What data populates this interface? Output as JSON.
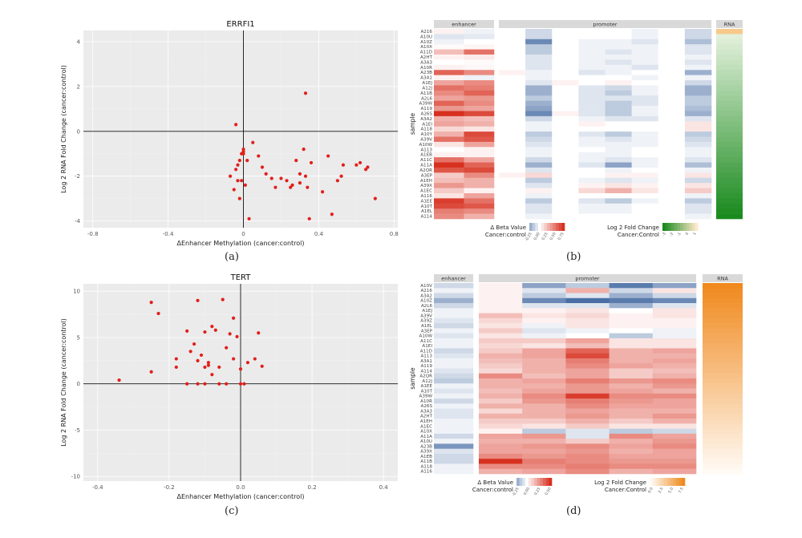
{
  "panel_labels": [
    "(a)",
    "(b)",
    "(c)",
    "(d)"
  ],
  "chart_data": [
    {
      "id": "a",
      "type": "scatter",
      "title": "ERRFI1",
      "xlabel": "ΔEnhancer Methylation (cancer:control)",
      "ylabel": "Log 2 RNA Fold Change (cancer:control)",
      "xlim": [
        -0.85,
        0.82
      ],
      "ylim": [
        -4.3,
        4.5
      ],
      "xticks": [
        -0.8,
        -0.4,
        0,
        0.4,
        0.8
      ],
      "xtick_labels": [
        "-0.8",
        "-0.4",
        "0",
        "0.4",
        "0.8"
      ],
      "yticks": [
        -4,
        -2,
        0,
        2,
        4
      ],
      "ytick_labels": [
        "-4",
        "-2",
        "0",
        "2",
        "4"
      ],
      "point_color": "#e0201b",
      "x": [
        -0.07,
        -0.05,
        -0.04,
        -0.03,
        -0.02,
        -0.01,
        -0.01,
        0.0,
        0.0,
        0.0,
        0.01,
        0.02,
        0.03,
        0.05,
        -0.02,
        -0.04,
        -0.03,
        0.08,
        0.1,
        0.12,
        0.15,
        0.17,
        0.2,
        0.23,
        0.25,
        0.28,
        0.3,
        0.3,
        0.32,
        0.33,
        0.34,
        0.35,
        0.36,
        0.42,
        0.45,
        0.47,
        0.5,
        0.52,
        0.53,
        0.6,
        0.62,
        0.65,
        0.66,
        0.7,
        0.33,
        0.26
      ],
      "y": [
        -2.0,
        -2.6,
        -1.7,
        -2.2,
        -3.0,
        -1.0,
        -2.2,
        -0.8,
        -0.9,
        -1.0,
        -2.4,
        -1.3,
        -3.9,
        -0.5,
        -1.3,
        0.3,
        -1.5,
        -1.1,
        -1.6,
        -1.9,
        -2.1,
        -2.5,
        -2.1,
        -2.2,
        -2.5,
        -1.3,
        -2.3,
        -1.9,
        -0.8,
        -2.0,
        -2.5,
        -3.9,
        -1.4,
        -2.7,
        -1.1,
        -3.7,
        -2.2,
        -2.0,
        -1.5,
        -1.5,
        -1.4,
        -1.7,
        -1.6,
        -3.0,
        1.7,
        -2.4
      ]
    },
    {
      "id": "c",
      "type": "scatter",
      "title": "TERT",
      "xlabel": "ΔEnhancer Methylation (cancer:control)",
      "ylabel": "Log 2 RNA Fold Change (cancer:control)",
      "xlim": [
        -0.44,
        0.44
      ],
      "ylim": [
        -10.5,
        10.8
      ],
      "xticks": [
        -0.4,
        -0.2,
        0,
        0.2,
        0.4
      ],
      "xtick_labels": [
        "-0.4",
        "-0.2",
        "0.0",
        "0.2",
        "0.4"
      ],
      "yticks": [
        -10,
        -5,
        0,
        5,
        10
      ],
      "ytick_labels": [
        "-10",
        "-5",
        "0",
        "5",
        "10"
      ],
      "point_color": "#e0201b",
      "x": [
        -0.34,
        -0.25,
        -0.23,
        -0.25,
        -0.18,
        -0.18,
        -0.15,
        -0.14,
        -0.13,
        -0.12,
        -0.12,
        -0.11,
        -0.1,
        -0.1,
        -0.09,
        -0.09,
        -0.08,
        -0.08,
        -0.07,
        -0.06,
        -0.05,
        -0.04,
        -0.03,
        -0.02,
        -0.02,
        -0.01,
        0.0,
        0.0,
        0.01,
        0.02,
        0.04,
        0.05,
        0.06,
        -0.15,
        -0.12,
        -0.1,
        -0.06,
        -0.04
      ],
      "y": [
        0.4,
        8.8,
        7.6,
        1.3,
        2.7,
        1.8,
        5.7,
        3.5,
        4.3,
        2.5,
        9.0,
        3.1,
        5.6,
        1.8,
        2.0,
        2.3,
        6.2,
        1.0,
        5.8,
        1.8,
        9.1,
        3.9,
        5.4,
        2.7,
        7.1,
        5.1,
        0.0,
        1.6,
        0.0,
        2.3,
        2.7,
        5.5,
        1.9,
        0.0,
        0.0,
        0.0,
        0.0,
        0.0
      ]
    },
    {
      "id": "b",
      "type": "heatmap",
      "section_labels": {
        "enhancer": "enhancer",
        "promoter": "promoter",
        "rna": "RNA"
      },
      "ylabel": "sample",
      "samples": [
        "A216",
        "A10U",
        "A10Z",
        "A10X",
        "A11D",
        "A2HT",
        "A3A3",
        "A10R",
        "A23B",
        "A3A1",
        "A1EJ",
        "A12J",
        "A11B",
        "A2L6",
        "A39W",
        "A119",
        "A26S",
        "A3A2",
        "A1EI",
        "A118",
        "A10Y",
        "A39V",
        "A10W",
        "A113",
        "A1EB",
        "A11C",
        "A11A",
        "A2QR",
        "A3EP",
        "A1EH",
        "A39X",
        "A1EC",
        "A116",
        "A1EE",
        "A10T",
        "A1EL",
        "A114"
      ],
      "enhancer": [
        [
          0.05,
          -0.05
        ],
        [
          -0.1,
          -0.08
        ],
        [
          -0.05,
          0.0
        ],
        [
          0.02,
          0.04
        ],
        [
          0.25,
          0.55
        ],
        [
          0.05,
          0.08
        ],
        [
          0.0,
          0.02
        ],
        [
          0.05,
          0.03
        ],
        [
          0.6,
          0.45
        ],
        [
          0.05,
          -0.05
        ],
        [
          0.35,
          0.45
        ],
        [
          0.55,
          0.5
        ],
        [
          0.45,
          0.6
        ],
        [
          0.35,
          0.4
        ],
        [
          0.6,
          0.45
        ],
        [
          0.4,
          0.35
        ],
        [
          0.8,
          0.7
        ],
        [
          0.3,
          0.25
        ],
        [
          0.35,
          0.3
        ],
        [
          0.15,
          0.1
        ],
        [
          0.3,
          0.7
        ],
        [
          0.55,
          0.65
        ],
        [
          0.1,
          0.35
        ],
        [
          0.0,
          0.05
        ],
        [
          0.05,
          0.05
        ],
        [
          0.55,
          0.35
        ],
        [
          0.85,
          0.6
        ],
        [
          0.65,
          0.7
        ],
        [
          0.2,
          0.45
        ],
        [
          0.25,
          0.3
        ],
        [
          0.4,
          0.3
        ],
        [
          0.2,
          0.05
        ],
        [
          0.1,
          0.35
        ],
        [
          0.75,
          0.55
        ],
        [
          0.7,
          0.65
        ],
        [
          0.5,
          0.45
        ],
        [
          0.45,
          0.3
        ]
      ],
      "promoter": [
        [
          0,
          -0.15,
          0,
          0,
          0,
          -0.05,
          0,
          -0.15
        ],
        [
          0,
          -0.15,
          0,
          0,
          0,
          -0.05,
          0,
          -0.15
        ],
        [
          0,
          -0.45,
          0,
          -0.05,
          -0.05,
          -0.1,
          0,
          -0.25
        ],
        [
          0,
          -0.2,
          0,
          -0.05,
          -0.05,
          -0.05,
          0,
          -0.1
        ],
        [
          0,
          -0.2,
          0,
          -0.05,
          -0.1,
          -0.05,
          0,
          -0.1
        ],
        [
          0,
          -0.1,
          0,
          -0.05,
          -0.05,
          -0.05,
          0,
          -0.05
        ],
        [
          0,
          -0.1,
          0,
          -0.05,
          -0.1,
          -0.05,
          0,
          -0.1
        ],
        [
          0,
          -0.1,
          0,
          -0.05,
          -0.05,
          -0.1,
          0,
          -0.05
        ],
        [
          0.05,
          -0.05,
          0,
          -0.1,
          -0.05,
          0,
          0,
          -0.3
        ],
        [
          0,
          -0.05,
          0,
          0,
          0,
          -0.05,
          0,
          -0.05
        ],
        [
          0,
          -0.1,
          0.05,
          0,
          0.05,
          0,
          0,
          -0.15
        ],
        [
          0,
          -0.3,
          0,
          -0.1,
          -0.15,
          -0.05,
          0,
          -0.3
        ],
        [
          0,
          -0.3,
          0,
          -0.1,
          -0.2,
          -0.05,
          0,
          -0.3
        ],
        [
          0,
          -0.2,
          0,
          -0.1,
          -0.1,
          -0.1,
          0,
          -0.2
        ],
        [
          0,
          -0.3,
          0,
          -0.1,
          -0.2,
          -0.1,
          0,
          -0.2
        ],
        [
          0,
          -0.35,
          0,
          -0.1,
          -0.2,
          -0.05,
          0,
          -0.25
        ],
        [
          0,
          -0.45,
          0.05,
          -0.1,
          -0.2,
          -0.05,
          0,
          -0.3
        ],
        [
          0,
          -0.15,
          0,
          -0.05,
          -0.1,
          -0.1,
          0,
          -0.1
        ],
        [
          0,
          -0.05,
          0,
          0.05,
          0,
          0,
          0,
          0.1
        ],
        [
          0,
          -0.05,
          0,
          0,
          0,
          0,
          0,
          0.1
        ],
        [
          0,
          -0.2,
          0,
          -0.1,
          -0.2,
          -0.05,
          0,
          -0.2
        ],
        [
          0,
          -0.15,
          0,
          -0.05,
          -0.1,
          -0.05,
          0,
          -0.15
        ],
        [
          0,
          -0.1,
          0,
          -0.05,
          -0.05,
          -0.05,
          0,
          -0.1
        ],
        [
          0,
          -0.05,
          0,
          0,
          -0.05,
          0,
          0,
          -0.05
        ],
        [
          0,
          -0.05,
          0,
          -0.05,
          -0.05,
          0,
          0,
          -0.05
        ],
        [
          0,
          -0.15,
          0,
          -0.05,
          -0.1,
          -0.05,
          0,
          -0.1
        ],
        [
          0,
          -0.3,
          0,
          -0.1,
          -0.35,
          -0.05,
          0,
          -0.25
        ],
        [
          0,
          -0.1,
          0,
          0,
          -0.05,
          0,
          0,
          -0.05
        ],
        [
          0.05,
          0.15,
          0,
          0,
          0.05,
          0.05,
          0,
          0.1
        ],
        [
          0,
          -0.2,
          0,
          -0.05,
          -0.1,
          -0.05,
          0,
          -0.15
        ],
        [
          0,
          -0.1,
          0,
          0.05,
          0.1,
          0.05,
          0,
          0.1
        ],
        [
          0,
          0.05,
          0,
          0.15,
          0.3,
          0.1,
          0,
          0.2
        ],
        [
          0,
          -0.05,
          0,
          0,
          0,
          0,
          0,
          -0.05
        ],
        [
          0,
          -0.2,
          0,
          -0.1,
          -0.2,
          -0.05,
          0,
          -0.2
        ],
        [
          0,
          -0.1,
          0,
          -0.05,
          -0.05,
          0,
          0,
          -0.1
        ],
        [
          0,
          -0.1,
          0,
          -0.05,
          -0.05,
          0,
          0,
          -0.1
        ],
        [
          0,
          -0.05,
          0,
          0,
          0,
          0,
          0,
          -0.05
        ]
      ],
      "rna_first_color": "#f7c98b",
      "rna_scale": {
        "from": "#e8f3e0",
        "to": "#1a8a1e"
      },
      "legend1_title": [
        "Δ Beta Value",
        "Cancer:control"
      ],
      "legend1_ticks": [
        "-0.25",
        "0.00",
        "0.25",
        "0.50",
        "0.75"
      ],
      "legend2_title": [
        "Log 2 Fold Change",
        "Cancer:Control"
      ],
      "legend2_ticks": [
        "-3",
        "-2",
        "-1",
        "0",
        "1"
      ]
    },
    {
      "id": "d",
      "type": "heatmap",
      "section_labels": {
        "enhancer": "enhancer",
        "promoter": "promoter",
        "rna": "RNA"
      },
      "ylabel": "sample",
      "samples": [
        "A10V",
        "A216",
        "A3A2",
        "A10Z",
        "A2L6",
        "A1EJ",
        "A39V",
        "A39Z",
        "A1EL",
        "A3EP",
        "A10W",
        "A11C",
        "A1EI",
        "A11D",
        "A113",
        "A3A1",
        "A119",
        "A114",
        "A2QR",
        "A12J",
        "A1EE",
        "A10T",
        "A39W",
        "A10R",
        "A26S",
        "A3A3",
        "A2HT",
        "A1EH",
        "A1EC",
        "A10X",
        "A11A",
        "A10U",
        "A23B",
        "A39X",
        "A1EB",
        "A11B",
        "A118",
        "A116"
      ],
      "enhancer": [
        [
          -0.15
        ],
        [
          -0.05
        ],
        [
          -0.15
        ],
        [
          -0.3
        ],
        [
          -0.15
        ],
        [
          -0.05
        ],
        [
          -0.05
        ],
        [
          -0.1
        ],
        [
          -0.15
        ],
        [
          -0.05
        ],
        [
          -0.1
        ],
        [
          -0.05
        ],
        [
          -0.05
        ],
        [
          -0.15
        ],
        [
          -0.1
        ],
        [
          -0.05
        ],
        [
          -0.05
        ],
        [
          -0.1
        ],
        [
          -0.15
        ],
        [
          -0.2
        ],
        [
          -0.05
        ],
        [
          -0.1
        ],
        [
          -0.05
        ],
        [
          -0.15
        ],
        [
          -0.05
        ],
        [
          -0.1
        ],
        [
          -0.1
        ],
        [
          -0.05
        ],
        [
          -0.05
        ],
        [
          -0.05
        ],
        [
          -0.15
        ],
        [
          -0.05
        ],
        [
          -0.4
        ],
        [
          -0.1
        ],
        [
          -0.15
        ],
        [
          -0.15
        ],
        [
          -0.05
        ],
        [
          -0.05
        ]
      ],
      "promoter": [
        [
          0.05,
          -0.35,
          -0.2,
          -0.5,
          -0.35
        ],
        [
          0.05,
          -0.1,
          0.3,
          -0.15,
          0.1
        ],
        [
          0.05,
          -0.2,
          -0.1,
          -0.3,
          -0.15
        ],
        [
          0.05,
          -0.45,
          -0.55,
          -0.5,
          -0.45
        ],
        [
          0.05,
          -0.1,
          -0.1,
          -0.3,
          -0.1
        ],
        [
          0.05,
          0.05,
          0.1,
          0.0,
          0.1
        ],
        [
          0.25,
          0.1,
          0.15,
          0.05,
          0.1
        ],
        [
          0.15,
          0.05,
          0.1,
          0.05,
          0.05
        ],
        [
          0.1,
          -0.05,
          0.1,
          0.05,
          0.05
        ],
        [
          0.2,
          -0.1,
          -0.05,
          0.0,
          -0.05
        ],
        [
          0.1,
          -0.05,
          0.0,
          -0.2,
          -0.05
        ],
        [
          0.2,
          0.2,
          0.35,
          0.1,
          0.1
        ],
        [
          0.15,
          0.1,
          0.25,
          0.1,
          0.1
        ],
        [
          0.2,
          0.35,
          0.6,
          0.3,
          0.35
        ],
        [
          0.3,
          0.35,
          0.7,
          0.3,
          0.3
        ],
        [
          0.25,
          0.3,
          0.5,
          0.3,
          0.35
        ],
        [
          0.2,
          0.3,
          0.45,
          0.35,
          0.3
        ],
        [
          0.15,
          0.3,
          0.35,
          0.2,
          0.25
        ],
        [
          0.45,
          0.25,
          0.35,
          0.2,
          0.3
        ],
        [
          0.3,
          0.35,
          0.5,
          0.4,
          0.45
        ],
        [
          0.3,
          0.3,
          0.4,
          0.3,
          0.4
        ],
        [
          0.25,
          0.35,
          0.4,
          0.35,
          0.3
        ],
        [
          0.3,
          0.45,
          0.75,
          0.45,
          0.45
        ],
        [
          0.2,
          0.4,
          0.5,
          0.4,
          0.35
        ],
        [
          0.3,
          0.3,
          0.45,
          0.35,
          0.35
        ],
        [
          0.15,
          0.3,
          0.35,
          0.3,
          0.3
        ],
        [
          0.3,
          0.3,
          0.4,
          0.3,
          0.4
        ],
        [
          0.2,
          0.2,
          0.3,
          0.2,
          0.3
        ],
        [
          0.15,
          0.1,
          0.2,
          0.1,
          0.1
        ],
        [
          0.05,
          -0.2,
          -0.1,
          -0.2,
          -0.15
        ],
        [
          0.35,
          0.4,
          -0.1,
          0.45,
          0.35
        ],
        [
          0.3,
          0.3,
          0.2,
          0.3,
          0.4
        ],
        [
          0.35,
          0.4,
          0.45,
          0.35,
          0.45
        ],
        [
          0.35,
          0.35,
          0.4,
          0.3,
          0.35
        ],
        [
          0.45,
          0.4,
          0.45,
          0.35,
          0.35
        ],
        [
          0.8,
          0.5,
          0.45,
          0.4,
          0.4
        ],
        [
          0.45,
          0.45,
          0.5,
          0.45,
          0.45
        ],
        [
          0.3,
          0.35,
          0.45,
          0.3,
          0.35
        ]
      ],
      "rna_scale": {
        "from": "#f08a1e",
        "to": "#fffaf4"
      },
      "legend1_title": [
        "Δ Beta Value",
        "Cancer:control"
      ],
      "legend1_ticks": [
        "-0.25",
        "0.00",
        "0.25",
        "0.50"
      ],
      "legend2_title": [
        "Log 2 Fold Change",
        "Cancer:Control"
      ],
      "legend2_ticks": [
        "0.0",
        "2.5",
        "5.0",
        "7.5"
      ]
    }
  ]
}
